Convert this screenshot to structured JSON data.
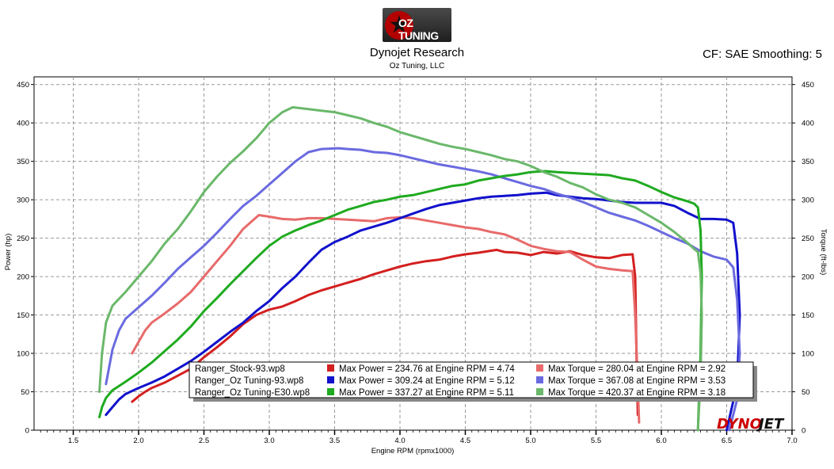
{
  "header": {
    "logo_text": "OZ TUNING",
    "title": "Dynojet Research",
    "subtitle": "Oz Tuning, LLC",
    "cf_text": "CF: SAE Smoothing: 5"
  },
  "brand_mark": {
    "text_left": "DYNO",
    "text_right": "JET"
  },
  "colors": {
    "stock_power": "#d41f1f",
    "stock_torque": "#e86a6a",
    "tune93_power": "#1111cc",
    "tune93_torque": "#6a6ae0",
    "e30_power": "#1faa1f",
    "e30_torque": "#6ab86a"
  },
  "chart_data": {
    "type": "line",
    "xlabel": "Engine RPM (rpmx1000)",
    "ylabel_left": "Power (hp)",
    "ylabel_right": "Torque (ft-lbs)",
    "xlim": [
      1.2,
      7.0
    ],
    "ylim": [
      0,
      460
    ],
    "x_ticks": [
      "1.5",
      "2.0",
      "2.5",
      "3.0",
      "3.5",
      "4.0",
      "4.5",
      "5.0",
      "5.5",
      "6.0",
      "6.5",
      "7.0"
    ],
    "y_ticks": [
      "0",
      "50",
      "100",
      "150",
      "200",
      "250",
      "300",
      "350",
      "400",
      "450"
    ],
    "grid": true,
    "legend": [
      {
        "run": "Ranger_Stock-93.wp8",
        "power_text": "Max Power = 234.76 at Engine RPM = 4.74",
        "torque_text": "Max Torque = 280.04 at Engine RPM = 2.92"
      },
      {
        "run": "Ranger_Oz Tuning-93.wp8",
        "power_text": "Max Power = 309.24 at Engine RPM = 5.12",
        "torque_text": "Max Torque = 367.08 at Engine RPM = 3.53"
      },
      {
        "run": "Ranger_Oz Tuning-E30.wp8",
        "power_text": "Max Power = 337.27 at Engine RPM = 5.11",
        "torque_text": "Max Torque = 420.37 at Engine RPM = 3.18"
      }
    ],
    "series": [
      {
        "color_key": "stock_power",
        "x": [
          1.95,
          2.0,
          2.05,
          2.1,
          2.2,
          2.3,
          2.4,
          2.5,
          2.6,
          2.7,
          2.8,
          2.9,
          3.0,
          3.1,
          3.2,
          3.3,
          3.4,
          3.5,
          3.6,
          3.7,
          3.8,
          3.9,
          4.0,
          4.1,
          4.2,
          4.3,
          4.4,
          4.5,
          4.6,
          4.74,
          4.8,
          4.9,
          5.0,
          5.1,
          5.2,
          5.3,
          5.4,
          5.5,
          5.6,
          5.7,
          5.78,
          5.8,
          5.81,
          5.82
        ],
        "y": [
          37,
          44,
          50,
          55,
          62,
          71,
          80,
          95,
          108,
          122,
          138,
          150,
          157,
          161,
          168,
          176,
          182,
          187,
          192,
          197,
          203,
          208,
          213,
          217,
          220,
          222,
          226,
          229,
          231,
          234.76,
          232,
          231,
          228,
          232,
          230,
          233,
          228,
          225,
          224,
          228,
          229,
          200,
          100,
          20
        ]
      },
      {
        "color_key": "stock_torque",
        "x": [
          1.95,
          2.0,
          2.05,
          2.1,
          2.2,
          2.3,
          2.4,
          2.5,
          2.6,
          2.7,
          2.8,
          2.92,
          3.0,
          3.1,
          3.2,
          3.3,
          3.4,
          3.5,
          3.6,
          3.7,
          3.8,
          3.9,
          4.0,
          4.1,
          4.2,
          4.3,
          4.4,
          4.5,
          4.6,
          4.7,
          4.8,
          4.9,
          5.0,
          5.1,
          5.2,
          5.3,
          5.4,
          5.5,
          5.6,
          5.7,
          5.78,
          5.8,
          5.82,
          5.83
        ],
        "y": [
          100,
          115,
          130,
          140,
          152,
          165,
          180,
          200,
          220,
          240,
          262,
          280.04,
          278,
          275,
          274,
          276,
          276,
          275,
          274,
          273,
          272,
          276,
          277,
          276,
          273,
          270,
          267,
          264,
          262,
          258,
          255,
          248,
          240,
          236,
          233,
          232,
          222,
          213,
          210,
          208,
          207,
          150,
          60,
          10
        ]
      },
      {
        "color_key": "tune93_power",
        "x": [
          1.75,
          1.8,
          1.85,
          1.9,
          2.0,
          2.1,
          2.2,
          2.3,
          2.4,
          2.5,
          2.6,
          2.7,
          2.8,
          2.9,
          3.0,
          3.1,
          3.2,
          3.3,
          3.4,
          3.5,
          3.6,
          3.7,
          3.8,
          3.9,
          4.0,
          4.1,
          4.2,
          4.3,
          4.4,
          4.5,
          4.6,
          4.7,
          4.8,
          4.9,
          5.0,
          5.12,
          5.2,
          5.3,
          5.4,
          5.5,
          5.6,
          5.7,
          5.8,
          5.9,
          6.0,
          6.1,
          6.2,
          6.3,
          6.4,
          6.5,
          6.55,
          6.58,
          6.6,
          6.58,
          6.5
        ],
        "y": [
          20,
          30,
          40,
          47,
          55,
          62,
          70,
          80,
          90,
          102,
          115,
          128,
          140,
          155,
          168,
          185,
          200,
          218,
          235,
          245,
          252,
          260,
          265,
          270,
          276,
          282,
          288,
          293,
          296,
          299,
          302,
          304,
          305,
          306,
          308,
          309.24,
          306,
          304,
          302,
          301,
          299,
          297,
          296,
          296,
          296,
          292,
          283,
          275,
          275,
          274,
          270,
          230,
          150,
          60,
          0
        ]
      },
      {
        "color_key": "tune93_torque",
        "x": [
          1.75,
          1.8,
          1.85,
          1.9,
          2.0,
          2.1,
          2.2,
          2.3,
          2.4,
          2.5,
          2.6,
          2.7,
          2.8,
          2.9,
          3.0,
          3.1,
          3.2,
          3.3,
          3.4,
          3.53,
          3.6,
          3.7,
          3.8,
          3.9,
          4.0,
          4.1,
          4.2,
          4.3,
          4.4,
          4.5,
          4.6,
          4.7,
          4.8,
          4.9,
          5.0,
          5.1,
          5.2,
          5.3,
          5.4,
          5.5,
          5.6,
          5.7,
          5.8,
          5.9,
          6.0,
          6.1,
          6.2,
          6.3,
          6.4,
          6.5,
          6.55,
          6.58,
          6.6,
          6.58,
          6.52
        ],
        "y": [
          60,
          105,
          130,
          145,
          160,
          175,
          192,
          210,
          225,
          240,
          257,
          275,
          292,
          305,
          320,
          335,
          350,
          362,
          366,
          367.08,
          366,
          365,
          362,
          361,
          358,
          354,
          350,
          346,
          343,
          340,
          337,
          333,
          328,
          323,
          318,
          314,
          308,
          303,
          297,
          290,
          283,
          278,
          273,
          266,
          258,
          250,
          243,
          233,
          226,
          222,
          212,
          170,
          100,
          40,
          0
        ]
      },
      {
        "color_key": "e30_power",
        "x": [
          1.7,
          1.72,
          1.75,
          1.8,
          1.9,
          2.0,
          2.1,
          2.2,
          2.3,
          2.4,
          2.5,
          2.6,
          2.7,
          2.8,
          2.9,
          3.0,
          3.1,
          3.2,
          3.3,
          3.4,
          3.5,
          3.6,
          3.7,
          3.8,
          3.9,
          4.0,
          4.1,
          4.2,
          4.3,
          4.4,
          4.5,
          4.6,
          4.7,
          4.8,
          4.9,
          5.0,
          5.11,
          5.2,
          5.3,
          5.4,
          5.5,
          5.6,
          5.7,
          5.8,
          5.9,
          6.0,
          6.1,
          6.2,
          6.25,
          6.28,
          6.3,
          6.31,
          6.3,
          6.28
        ],
        "y": [
          17,
          30,
          42,
          52,
          63,
          75,
          88,
          103,
          118,
          135,
          155,
          172,
          190,
          207,
          224,
          240,
          252,
          260,
          267,
          273,
          280,
          287,
          292,
          297,
          300,
          304,
          306,
          310,
          314,
          318,
          320,
          325,
          328,
          331,
          333,
          336,
          337.27,
          336,
          335,
          334,
          333,
          332,
          328,
          325,
          318,
          310,
          303,
          298,
          295,
          290,
          260,
          200,
          100,
          0
        ]
      },
      {
        "color_key": "e30_torque",
        "x": [
          1.7,
          1.72,
          1.75,
          1.8,
          1.9,
          2.0,
          2.1,
          2.2,
          2.3,
          2.4,
          2.5,
          2.6,
          2.7,
          2.8,
          2.9,
          3.0,
          3.1,
          3.18,
          3.3,
          3.4,
          3.5,
          3.6,
          3.7,
          3.8,
          3.9,
          4.0,
          4.1,
          4.2,
          4.3,
          4.4,
          4.5,
          4.6,
          4.7,
          4.8,
          4.9,
          5.0,
          5.1,
          5.2,
          5.3,
          5.4,
          5.5,
          5.6,
          5.7,
          5.8,
          5.9,
          6.0,
          6.1,
          6.2,
          6.25,
          6.28,
          6.3,
          6.31,
          6.3,
          6.28
        ],
        "y": [
          50,
          100,
          140,
          162,
          180,
          200,
          220,
          243,
          262,
          285,
          310,
          330,
          348,
          363,
          380,
          400,
          414,
          420.37,
          418,
          416,
          414,
          410,
          406,
          400,
          395,
          388,
          383,
          378,
          373,
          369,
          366,
          362,
          358,
          353,
          350,
          344,
          336,
          330,
          322,
          316,
          307,
          300,
          296,
          290,
          280,
          270,
          258,
          244,
          236,
          232,
          205,
          150,
          70,
          0
        ]
      }
    ]
  }
}
